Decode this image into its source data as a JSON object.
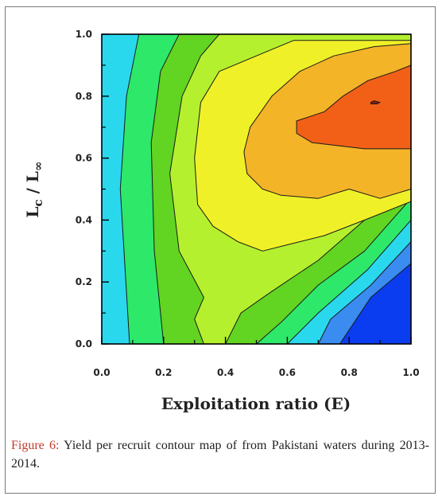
{
  "caption": {
    "label": "Figure 6:",
    "text": " Yield per recruit contour map of from Pakistani waters during 2013-2014."
  },
  "chart_data": {
    "type": "heatmap",
    "subtype": "filled-contour",
    "title": "",
    "xlabel": "Exploitation ratio (E)",
    "ylabel_main": "L",
    "ylabel_sub1": "c",
    "ylabel_mid": " / L",
    "ylabel_sub2": "∞",
    "xlim": [
      0.0,
      1.0
    ],
    "ylim": [
      0.0,
      1.0
    ],
    "x_ticks": [
      {
        "value": 0.0,
        "label": "0.0"
      },
      {
        "value": 0.2,
        "label": "0.2"
      },
      {
        "value": 0.4,
        "label": "0.4"
      },
      {
        "value": 0.6,
        "label": "0.6"
      },
      {
        "value": 0.8,
        "label": "0.8"
      },
      {
        "value": 1.0,
        "label": "1.0"
      }
    ],
    "y_ticks": [
      {
        "value": 0.0,
        "label": "0.0"
      },
      {
        "value": 0.2,
        "label": "0.2"
      },
      {
        "value": 0.4,
        "label": "0.4"
      },
      {
        "value": 0.6,
        "label": "0.6"
      },
      {
        "value": 0.8,
        "label": "0.8"
      },
      {
        "value": 1.0,
        "label": "1.0"
      }
    ],
    "grid": false,
    "legend": "none",
    "background_color": "#0a3cf0",
    "bands": [
      {
        "color": "#3a8cf0",
        "points": [
          [
            0.01,
            1.0
          ],
          [
            1.0,
            1.0
          ],
          [
            1.0,
            0.26
          ],
          [
            0.87,
            0.15
          ],
          [
            0.77,
            0.0
          ],
          [
            0.0,
            0.0
          ],
          [
            0.0,
            0.94
          ]
        ]
      },
      {
        "color": "#2ad8ee",
        "points": [
          [
            0.04,
            1.0
          ],
          [
            1.0,
            1.0
          ],
          [
            1.0,
            0.33
          ],
          [
            0.87,
            0.19
          ],
          [
            0.74,
            0.08
          ],
          [
            0.7,
            0.0
          ],
          [
            0.0,
            0.0
          ],
          [
            0.0,
            1.0
          ]
        ]
      },
      {
        "color": "#2ee86a",
        "points": [
          [
            0.12,
            1.0
          ],
          [
            1.0,
            1.0
          ],
          [
            1.0,
            0.4
          ],
          [
            0.86,
            0.24
          ],
          [
            0.7,
            0.1
          ],
          [
            0.6,
            0.0
          ],
          [
            0.09,
            0.0
          ],
          [
            0.06,
            0.5
          ],
          [
            0.08,
            0.8
          ]
        ]
      },
      {
        "color": "#62d422",
        "points": [
          [
            0.25,
            1.0
          ],
          [
            1.0,
            1.0
          ],
          [
            1.0,
            0.47
          ],
          [
            0.85,
            0.3
          ],
          [
            0.7,
            0.19
          ],
          [
            0.58,
            0.07
          ],
          [
            0.5,
            0.0
          ],
          [
            0.2,
            0.0
          ],
          [
            0.17,
            0.3
          ],
          [
            0.16,
            0.65
          ],
          [
            0.19,
            0.88
          ]
        ]
      },
      {
        "color": "#b4f02e",
        "points": [
          [
            0.38,
            1.0
          ],
          [
            1.0,
            1.0
          ],
          [
            1.0,
            0.57
          ],
          [
            0.85,
            0.4
          ],
          [
            0.7,
            0.27
          ],
          [
            0.55,
            0.17
          ],
          [
            0.45,
            0.1
          ],
          [
            0.4,
            0.0
          ],
          [
            0.33,
            0.0
          ],
          [
            0.3,
            0.08
          ],
          [
            0.33,
            0.15
          ],
          [
            0.25,
            0.3
          ],
          [
            0.22,
            0.55
          ],
          [
            0.26,
            0.8
          ],
          [
            0.32,
            0.93
          ]
        ]
      },
      {
        "color": "#f0f028",
        "points": [
          [
            1.0,
            0.98
          ],
          [
            1.0,
            0.46
          ],
          [
            0.85,
            0.4
          ],
          [
            0.72,
            0.35
          ],
          [
            0.6,
            0.32
          ],
          [
            0.52,
            0.3
          ],
          [
            0.44,
            0.33
          ],
          [
            0.36,
            0.38
          ],
          [
            0.31,
            0.45
          ],
          [
            0.3,
            0.6
          ],
          [
            0.32,
            0.78
          ],
          [
            0.38,
            0.88
          ],
          [
            0.5,
            0.93
          ],
          [
            0.62,
            0.98
          ]
        ]
      },
      {
        "color": "#f4b428",
        "points": [
          [
            1.0,
            0.97
          ],
          [
            1.0,
            0.5
          ],
          [
            0.9,
            0.47
          ],
          [
            0.8,
            0.5
          ],
          [
            0.7,
            0.47
          ],
          [
            0.58,
            0.48
          ],
          [
            0.52,
            0.5
          ],
          [
            0.47,
            0.55
          ],
          [
            0.46,
            0.62
          ],
          [
            0.48,
            0.7
          ],
          [
            0.55,
            0.8
          ],
          [
            0.64,
            0.88
          ],
          [
            0.75,
            0.93
          ],
          [
            0.88,
            0.96
          ]
        ]
      },
      {
        "color": "#f26018",
        "points": [
          [
            0.72,
            0.75
          ],
          [
            0.78,
            0.8
          ],
          [
            0.86,
            0.85
          ],
          [
            0.95,
            0.88
          ],
          [
            1.0,
            0.9
          ],
          [
            1.0,
            0.63
          ],
          [
            0.85,
            0.63
          ],
          [
            0.68,
            0.65
          ],
          [
            0.63,
            0.68
          ],
          [
            0.63,
            0.72
          ]
        ]
      },
      {
        "color": "#8a2010",
        "points": [
          [
            0.87,
            0.78
          ],
          [
            0.88,
            0.785
          ],
          [
            0.9,
            0.78
          ],
          [
            0.89,
            0.775
          ],
          [
            0.87,
            0.775
          ]
        ]
      }
    ]
  }
}
